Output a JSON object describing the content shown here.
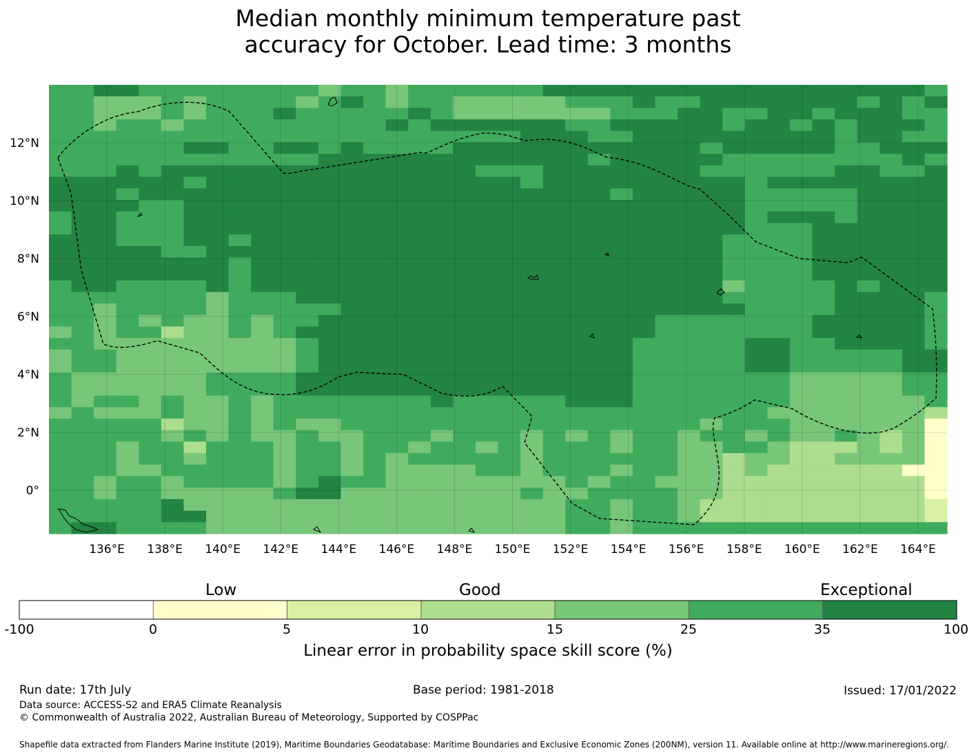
{
  "title_line1": "Median monthly minimum temperature past",
  "title_line2": "accuracy for October. Lead time: 3 months",
  "map": {
    "lon_ticks": [
      "136°E",
      "138°E",
      "140°E",
      "142°E",
      "144°E",
      "146°E",
      "148°E",
      "150°E",
      "152°E",
      "154°E",
      "156°E",
      "158°E",
      "160°E",
      "162°E",
      "164°E"
    ],
    "lat_ticks": [
      "12°N",
      "10°N",
      "8°N",
      "6°N",
      "4°N",
      "2°N",
      "0°"
    ],
    "lon_range": [
      134.0,
      165.0
    ],
    "lat_range": [
      -1.5,
      14.0
    ],
    "grid_cell_deg": 0.83,
    "grid_legend": "0=<0 (white), 1=0-5, 2=5-10, 3=10-15, 4=15-25, 5=25-35, 6=35-100",
    "grid_rows_north_to_south": [
      "5566555555554554555555666666666666666665",
      "5544454555545654554444455565566666665656",
      "5544454555655555654444444555665566566655",
      "5545545555555556566666655666665665656665",
      "5555555555555555555556665566666666656655",
      "5555556655665655556666666666656666655666",
      "5555555555556666666666665666665555555565",
      "5556566666666666666555666666655555566556",
      "6666665666666666666665666666666566666666",
      "6665666666666666666666666566666555556666",
      "6666556666666666666666666666666555556666",
      "5665556666666666666666666666666566656666",
      "5665556666666666666666666666666555666666",
      "6665556656666666666666666666665555666666",
      "6666655666666666666666666666665555666666",
      "6666666656666666666666666666665555666666",
      "6666666656666666666666666666665555666666",
      "5665555656666666666666666666664555565666",
      "5555555455566666666666666666665555566665",
      "5545555455555666666666666666666555566665",
      "5545454454556666666666666665555555666665",
      "4545534454566666666666666665555555666665",
      "5544444444456666666666666655555665566665",
      "4554444444456666666666666655555665555566",
      "4554444444456666666666666655555665555566",
      "5444444555566666666666666655555554444455",
      "5444444555566666666666666655555554444455",
      "5455454454555555565555566655555554444445",
      "4544454454555555555555555555555544444443",
      "5555534454544555555555555555545554444441",
      "5555545454454455545554545455455454454341",
      "5554553555455455455454555455445543334341",
      "5554554555455454555554555555443443344441",
      "5554455555455454444554555455443433333311",
      "5545545555456554444444454554443333333331",
      "5545544444566444444445445555443333333331",
      "5555564444444444444444455455433333333332",
      "5555566444444444444444455455433333333332",
      "5665555444444444444444455455555555555555"
    ]
  },
  "colorbar": {
    "words": [
      "Low",
      "Good",
      "Exceptional"
    ],
    "colors": [
      "#ffffff",
      "#ffffcc",
      "#d9f0a3",
      "#addd8e",
      "#78c679",
      "#41ab5d",
      "#238443"
    ],
    "tick_labels": [
      "-100",
      "0",
      "5",
      "10",
      "15",
      "25",
      "35",
      "100"
    ],
    "label": "Linear error in probability space skill score (%)"
  },
  "footer": {
    "run_date": "Run date: 17th July",
    "base_period": "Base period: 1981-2018",
    "issued": "Issued: 17/01/2022",
    "data_source": "Data source: ACCESS-S2 and ERA5 Climate Reanalysis",
    "copyright": "© Commonwealth of Australia 2022, Australian Bureau of Meteorology, Supported by COSPPac",
    "shapefile": "Shapefile data extracted from Flanders Marine Institute (2019), Maritime Boundaries Geodatabase: Maritime Boundaries and Exclusive Economic Zones (200NM), version 11. Available online at http://www.marineregions.org/."
  }
}
